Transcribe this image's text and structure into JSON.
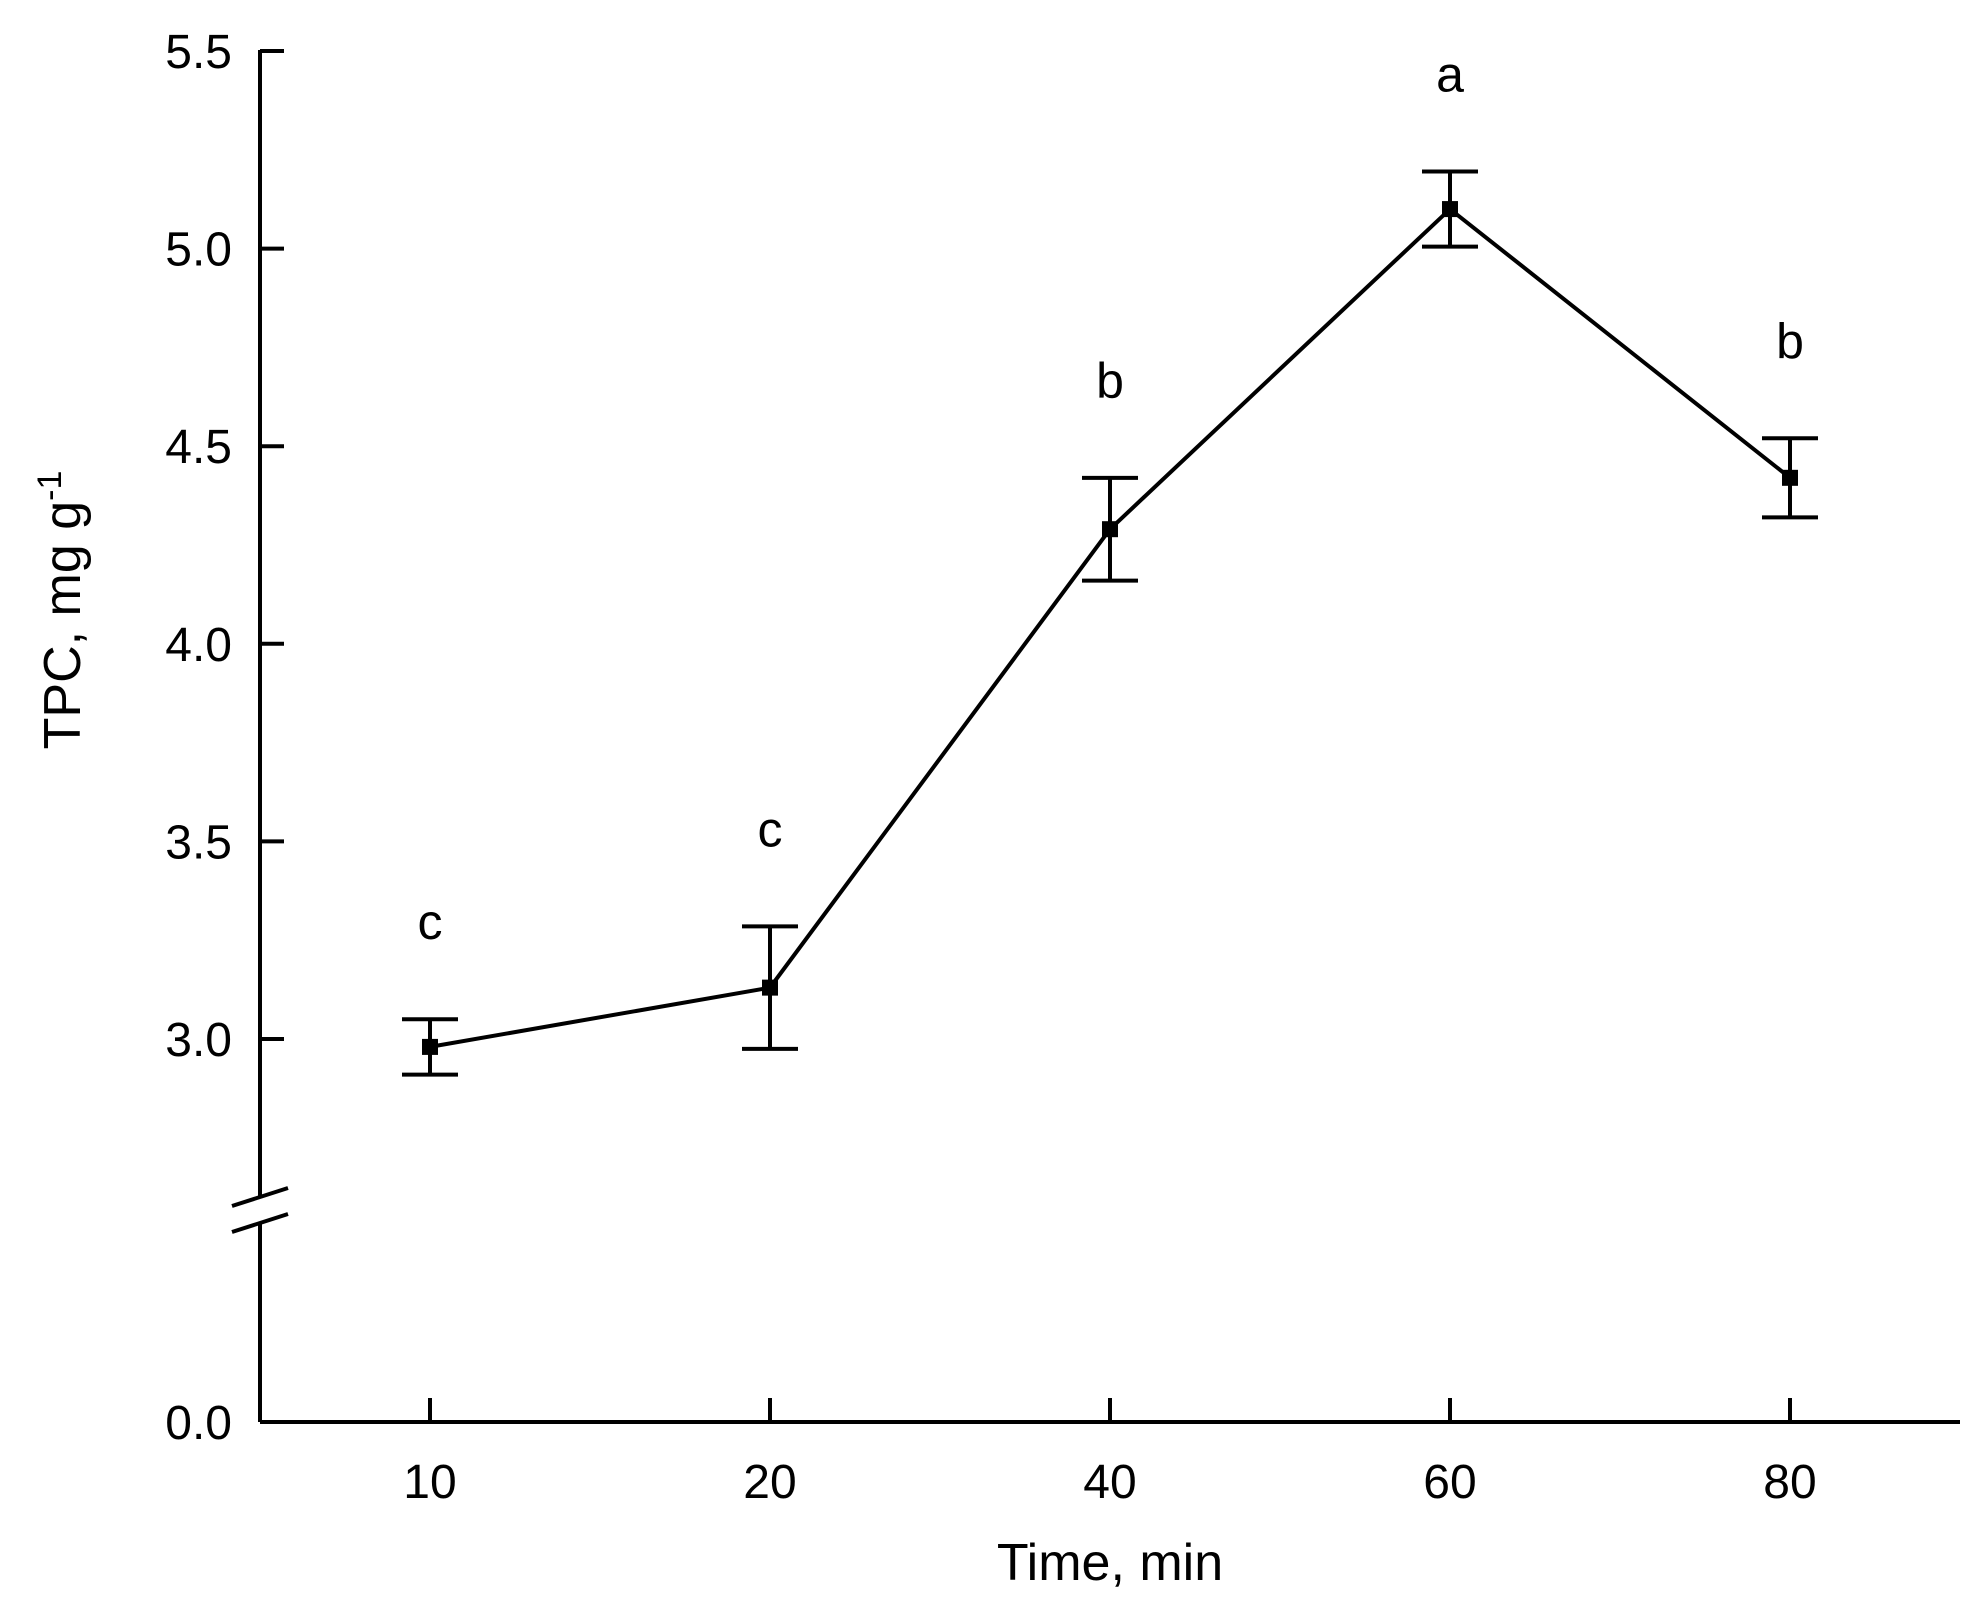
{
  "chart_data": {
    "type": "line",
    "x_scale": "categorical",
    "categories": [
      "10",
      "20",
      "40",
      "60",
      "80"
    ],
    "xlabel": "Time, min",
    "ylabel": "TPC, mg g",
    "ylabel_superscript": "-1",
    "ylim": [
      0.0,
      5.5
    ],
    "y_axis_break": true,
    "y_ticks": [
      {
        "value": 0.0,
        "label": "0.0"
      },
      {
        "value": 3.0,
        "label": "3.0"
      },
      {
        "value": 3.5,
        "label": "3.5"
      },
      {
        "value": 4.0,
        "label": "4.0"
      },
      {
        "value": 4.5,
        "label": "4.5"
      },
      {
        "value": 5.0,
        "label": "5.0"
      },
      {
        "value": 5.5,
        "label": "5.5"
      }
    ],
    "series": [
      {
        "name": "TPC",
        "values": [
          2.98,
          3.13,
          4.29,
          5.1,
          4.42
        ],
        "error": [
          0.07,
          0.155,
          0.13,
          0.095,
          0.1
        ],
        "significance": [
          "c",
          "c",
          "b",
          "a",
          "b"
        ]
      }
    ],
    "grid": false,
    "legend": "none"
  }
}
